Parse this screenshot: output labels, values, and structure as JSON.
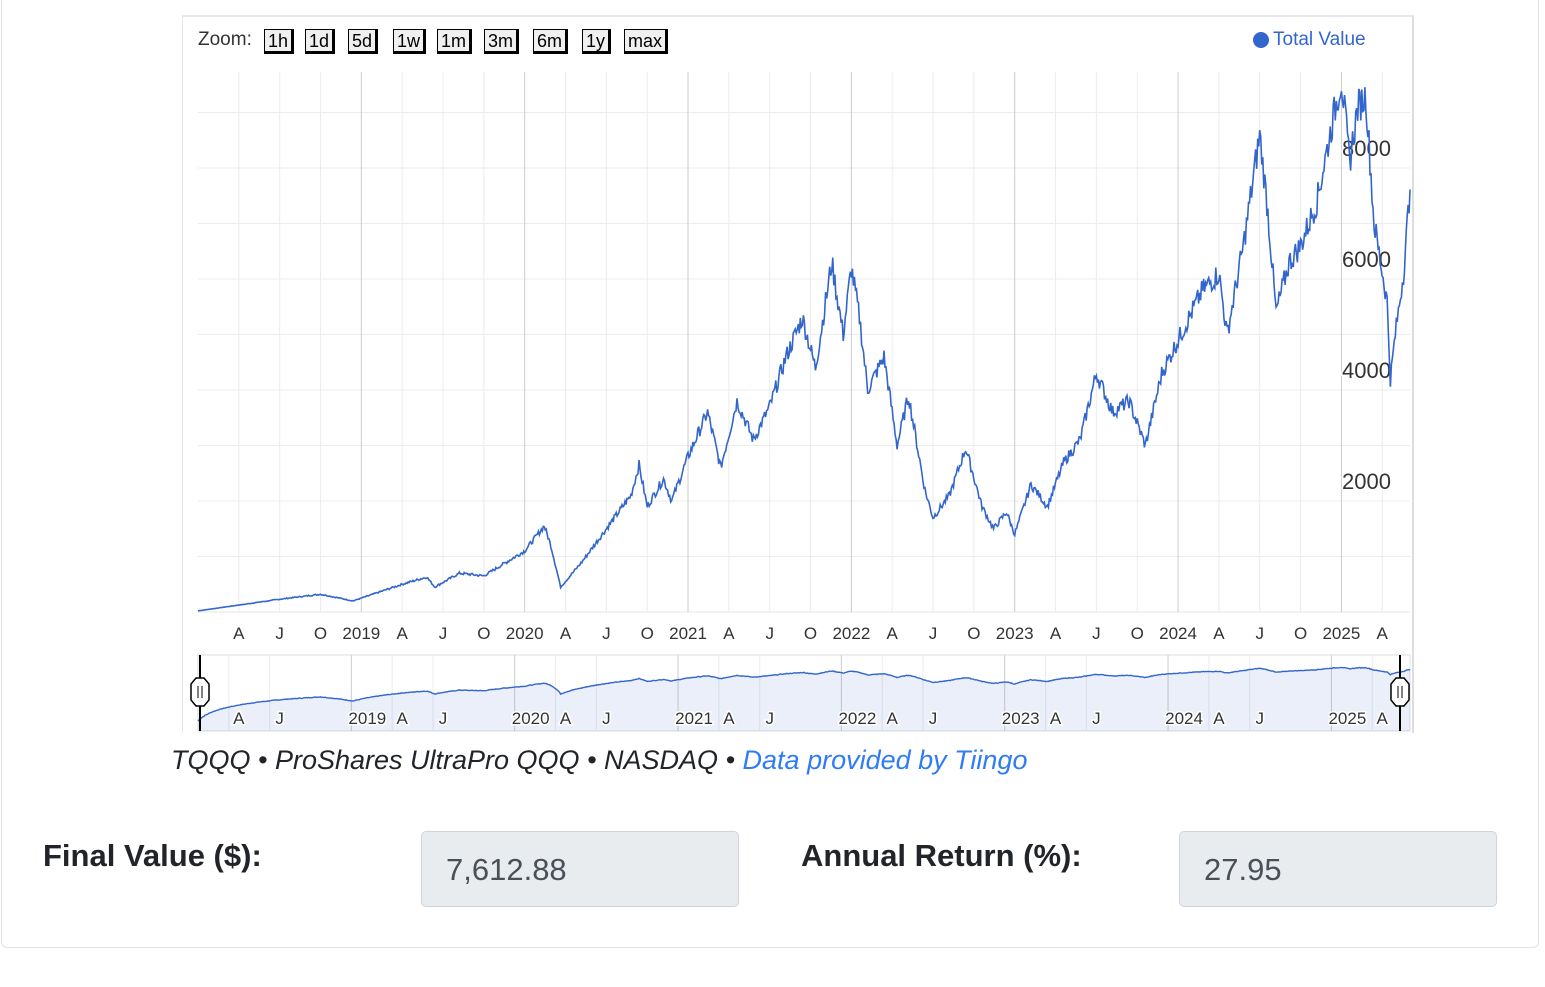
{
  "zoom": {
    "label": "Zoom:",
    "buttons": [
      "1h",
      "1d",
      "5d",
      "1w",
      "1m",
      "3m",
      "6m",
      "1y",
      "max"
    ]
  },
  "credit": {
    "ticker": "TQQQ",
    "name": "ProShares UltraPro QQQ",
    "exchange": "NASDAQ",
    "sep": " • ",
    "link": "Data provided by Tiingo"
  },
  "final_value": {
    "label": "Final Value ($):",
    "value": "7,612.88"
  },
  "annual_return": {
    "label": "Annual Return (%):",
    "value": "27.95"
  },
  "chart_data": {
    "type": "line",
    "legend": [
      "Total Value"
    ],
    "legend_position": "top-right",
    "color": "#3366cc",
    "ylim": [
      0,
      9700
    ],
    "yticks": [
      2000,
      4000,
      6000,
      8000
    ],
    "xlim": [
      2018.0,
      2025.42
    ],
    "xticks": [
      {
        "x": 2018.25,
        "label": "A"
      },
      {
        "x": 2018.5,
        "label": "J"
      },
      {
        "x": 2018.75,
        "label": "O"
      },
      {
        "x": 2019,
        "label": "2019"
      },
      {
        "x": 2019.25,
        "label": "A"
      },
      {
        "x": 2019.5,
        "label": "J"
      },
      {
        "x": 2019.75,
        "label": "O"
      },
      {
        "x": 2020,
        "label": "2020"
      },
      {
        "x": 2020.25,
        "label": "A"
      },
      {
        "x": 2020.5,
        "label": "J"
      },
      {
        "x": 2020.75,
        "label": "O"
      },
      {
        "x": 2021,
        "label": "2021"
      },
      {
        "x": 2021.25,
        "label": "A"
      },
      {
        "x": 2021.5,
        "label": "J"
      },
      {
        "x": 2021.75,
        "label": "O"
      },
      {
        "x": 2022,
        "label": "2022"
      },
      {
        "x": 2022.25,
        "label": "A"
      },
      {
        "x": 2022.5,
        "label": "J"
      },
      {
        "x": 2022.75,
        "label": "O"
      },
      {
        "x": 2023,
        "label": "2023"
      },
      {
        "x": 2023.25,
        "label": "A"
      },
      {
        "x": 2023.5,
        "label": "J"
      },
      {
        "x": 2023.75,
        "label": "O"
      },
      {
        "x": 2024,
        "label": "2024"
      },
      {
        "x": 2024.25,
        "label": "A"
      },
      {
        "x": 2024.5,
        "label": "J"
      },
      {
        "x": 2024.75,
        "label": "O"
      },
      {
        "x": 2025,
        "label": "2025"
      },
      {
        "x": 2025.25,
        "label": "A"
      }
    ],
    "navticks": [
      {
        "x": 2018.25,
        "label": "A"
      },
      {
        "x": 2018.5,
        "label": "J"
      },
      {
        "x": 2019,
        "label": "2019"
      },
      {
        "x": 2019.25,
        "label": "A"
      },
      {
        "x": 2019.5,
        "label": "J"
      },
      {
        "x": 2020,
        "label": "2020"
      },
      {
        "x": 2020.25,
        "label": "A"
      },
      {
        "x": 2020.5,
        "label": "J"
      },
      {
        "x": 2021,
        "label": "2021"
      },
      {
        "x": 2021.25,
        "label": "A"
      },
      {
        "x": 2021.5,
        "label": "J"
      },
      {
        "x": 2022,
        "label": "2022"
      },
      {
        "x": 2022.25,
        "label": "A"
      },
      {
        "x": 2022.5,
        "label": "J"
      },
      {
        "x": 2023,
        "label": "2023"
      },
      {
        "x": 2023.25,
        "label": "A"
      },
      {
        "x": 2023.5,
        "label": "J"
      },
      {
        "x": 2024,
        "label": "2024"
      },
      {
        "x": 2024.25,
        "label": "A"
      },
      {
        "x": 2024.5,
        "label": "J"
      },
      {
        "x": 2025,
        "label": "2025"
      },
      {
        "x": 2025.25,
        "label": "A"
      }
    ],
    "series": [
      {
        "name": "Total Value",
        "points": [
          [
            2018.0,
            20
          ],
          [
            2018.5,
            230
          ],
          [
            2018.75,
            320
          ],
          [
            2018.95,
            200
          ],
          [
            2019.0,
            250
          ],
          [
            2019.25,
            500
          ],
          [
            2019.4,
            630
          ],
          [
            2019.45,
            450
          ],
          [
            2019.6,
            700
          ],
          [
            2019.75,
            650
          ],
          [
            2020.0,
            1100
          ],
          [
            2020.12,
            1550
          ],
          [
            2020.16,
            1200
          ],
          [
            2020.22,
            450
          ],
          [
            2020.35,
            900
          ],
          [
            2020.5,
            1500
          ],
          [
            2020.65,
            2100
          ],
          [
            2020.7,
            2650
          ],
          [
            2020.75,
            1900
          ],
          [
            2020.85,
            2400
          ],
          [
            2020.9,
            2000
          ],
          [
            2021.0,
            2800
          ],
          [
            2021.12,
            3600
          ],
          [
            2021.2,
            2600
          ],
          [
            2021.3,
            3800
          ],
          [
            2021.4,
            3100
          ],
          [
            2021.5,
            3700
          ],
          [
            2021.6,
            4600
          ],
          [
            2021.7,
            5300
          ],
          [
            2021.78,
            4400
          ],
          [
            2021.88,
            6300
          ],
          [
            2021.95,
            5000
          ],
          [
            2022.0,
            6200
          ],
          [
            2022.05,
            5300
          ],
          [
            2022.1,
            4000
          ],
          [
            2022.2,
            4600
          ],
          [
            2022.28,
            3000
          ],
          [
            2022.35,
            3900
          ],
          [
            2022.45,
            2200
          ],
          [
            2022.5,
            1700
          ],
          [
            2022.6,
            2100
          ],
          [
            2022.7,
            2950
          ],
          [
            2022.8,
            1900
          ],
          [
            2022.87,
            1500
          ],
          [
            2022.95,
            1800
          ],
          [
            2023.0,
            1400
          ],
          [
            2023.1,
            2300
          ],
          [
            2023.2,
            1900
          ],
          [
            2023.3,
            2700
          ],
          [
            2023.4,
            3100
          ],
          [
            2023.5,
            4300
          ],
          [
            2023.6,
            3600
          ],
          [
            2023.7,
            3800
          ],
          [
            2023.8,
            3000
          ],
          [
            2023.9,
            4300
          ],
          [
            2024.0,
            4900
          ],
          [
            2024.15,
            5800
          ],
          [
            2024.25,
            6100
          ],
          [
            2024.3,
            5000
          ],
          [
            2024.4,
            6600
          ],
          [
            2024.5,
            8600
          ],
          [
            2024.55,
            7200
          ],
          [
            2024.6,
            5400
          ],
          [
            2024.68,
            6300
          ],
          [
            2024.75,
            6600
          ],
          [
            2024.85,
            7400
          ],
          [
            2024.95,
            8900
          ],
          [
            2025.0,
            9600
          ],
          [
            2025.05,
            8100
          ],
          [
            2025.1,
            9100
          ],
          [
            2025.15,
            9300
          ],
          [
            2025.2,
            7000
          ],
          [
            2025.28,
            5600
          ],
          [
            2025.3,
            4200
          ],
          [
            2025.33,
            5000
          ],
          [
            2025.38,
            6100
          ],
          [
            2025.42,
            7613
          ]
        ]
      }
    ]
  }
}
